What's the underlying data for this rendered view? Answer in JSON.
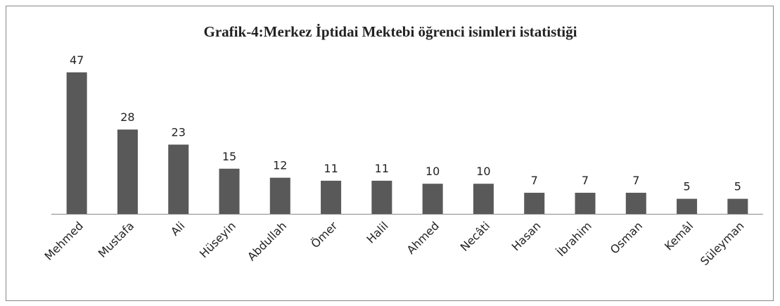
{
  "chart_data": {
    "type": "bar",
    "title": "Grafik-4:Merkez İptidai Mektebi öğrenci isimleri istatistiği",
    "categories": [
      "Mehmed",
      "Mustafa",
      "Ali",
      "Hüseyin",
      "Abdullah",
      "Ömer",
      "Halil",
      "Ahmed",
      "Necâti",
      "Hasan",
      "İbrahim",
      "Osman",
      "Kemâl",
      "Süleyman"
    ],
    "values": [
      47,
      28,
      23,
      15,
      12,
      11,
      11,
      10,
      10,
      7,
      7,
      7,
      5,
      5
    ],
    "color": "#595959",
    "ylim": [
      0,
      50
    ]
  }
}
